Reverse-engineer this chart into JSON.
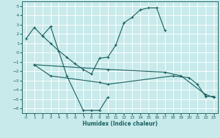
{
  "xlabel": "Humidex (Indice chaleur)",
  "bg_color": "#c8eaea",
  "grid_color": "#ffffff",
  "line_color": "#1a6060",
  "xlim": [
    -0.5,
    23.5
  ],
  "ylim": [
    -6.5,
    5.5
  ],
  "yticks": [
    -6,
    -5,
    -4,
    -3,
    -2,
    -1,
    0,
    1,
    2,
    3,
    4,
    5
  ],
  "xticks": [
    0,
    1,
    2,
    3,
    4,
    5,
    6,
    7,
    8,
    9,
    10,
    11,
    12,
    13,
    14,
    15,
    16,
    17,
    18,
    19,
    20,
    21,
    22,
    23
  ],
  "line1_x": [
    0,
    1,
    2,
    3,
    4,
    5,
    6,
    7,
    8,
    9,
    10,
    11,
    12,
    13,
    14,
    15,
    16,
    17
  ],
  "line1_y": [
    1.5,
    2.7,
    1.8,
    1.0,
    0.2,
    -0.5,
    -1.2,
    -1.8,
    -2.3,
    -0.6,
    -0.5,
    0.8,
    3.2,
    3.8,
    4.6,
    4.8,
    4.8,
    2.4
  ],
  "line2_x": [
    2,
    3,
    5,
    7,
    8,
    9,
    10
  ],
  "line2_y": [
    1.8,
    2.8,
    -2.5,
    -6.2,
    -6.2,
    -6.2,
    -4.8
  ],
  "line3_x": [
    1,
    3,
    9,
    10,
    18,
    20,
    21,
    22,
    23
  ],
  "line3_y": [
    -1.3,
    -2.5,
    -3.2,
    -3.4,
    -2.5,
    -2.7,
    -3.4,
    -4.7,
    -4.7
  ],
  "line4_x": [
    1,
    10,
    17,
    19,
    22,
    23
  ],
  "line4_y": [
    -1.3,
    -1.8,
    -2.1,
    -2.5,
    -4.5,
    -4.8
  ]
}
